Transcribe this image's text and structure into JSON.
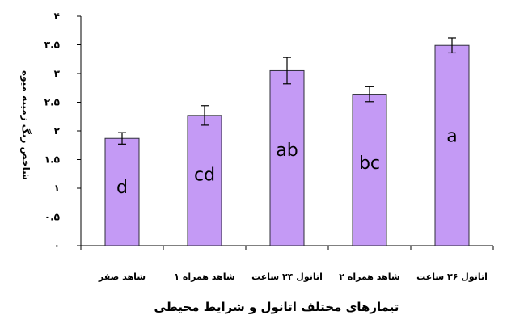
{
  "chart_data": {
    "type": "bar",
    "categories": [
      "شاهد صفر",
      "شاهد همراه ۱",
      "اتانول ۲۴ ساعت",
      "شاهد همراه ۲",
      "اتانول ۳۶ ساعت"
    ],
    "values": [
      1.87,
      2.27,
      3.05,
      2.64,
      3.49
    ],
    "errors": [
      0.1,
      0.17,
      0.23,
      0.13,
      0.13
    ],
    "bar_labels": [
      "d",
      "cd",
      "ab",
      "bc",
      "a"
    ],
    "ylim": [
      0,
      4
    ],
    "yticks": [
      0,
      0.5,
      1,
      1.5,
      2,
      2.5,
      3,
      3.5,
      4
    ],
    "ytick_labels": [
      "۰",
      "۰.۵",
      "۱",
      "۱.۵",
      "۲",
      "۲.۵",
      "۳",
      "۳.۵",
      "۴"
    ],
    "xlabel": "تیمارهای مختلف اتانول و شرایط محیطی",
    "ylabel": "شاخص رنگ زمینه میوه",
    "title": "",
    "grid": false,
    "bar_color": "#c49af5",
    "bar_edge_color": "#2f2f3a"
  }
}
